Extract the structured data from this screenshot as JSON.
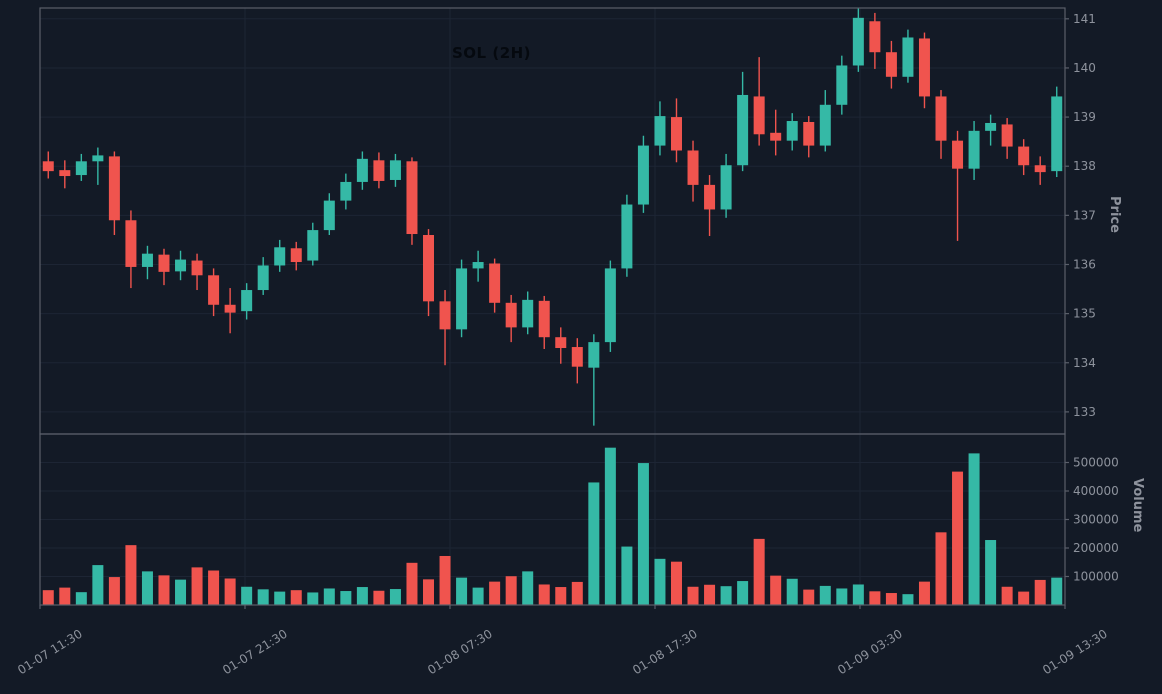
{
  "colors": {
    "background": "#131a26",
    "up": "#35b9a6",
    "down": "#f0544e",
    "grid": "#1d2534",
    "spine": "#5a5f6a",
    "tick_text": "#8e939d",
    "axis_label_text": "#8e939d",
    "title_text": "#05090f"
  },
  "chart_data": {
    "type": "candlestick",
    "title": "SOL (2H)",
    "ylabel": "Price",
    "ylabel2": "Volume",
    "xlabel": "",
    "legend": "none",
    "grid": "on",
    "x_tick_labels": [
      "01-07 11:30",
      "01-07 21:30",
      "01-08 07:30",
      "01-08 17:30",
      "01-09 03:30",
      "01-09 13:30"
    ],
    "price_ticks": [
      133,
      134,
      135,
      136,
      137,
      138,
      139,
      140,
      141
    ],
    "volume_ticks": [
      100000,
      200000,
      300000,
      400000,
      500000
    ],
    "price_ylim": [
      132.55,
      141.22
    ],
    "volume_ylim": [
      0,
      600000
    ],
    "columns": [
      "open",
      "high",
      "low",
      "close",
      "volume"
    ],
    "candles": [
      [
        138.1,
        138.3,
        137.75,
        137.9,
        52000
      ],
      [
        137.92,
        138.12,
        137.55,
        137.8,
        61000
      ],
      [
        137.82,
        138.25,
        137.7,
        138.1,
        45000
      ],
      [
        138.1,
        138.38,
        137.62,
        138.22,
        140000
      ],
      [
        138.2,
        138.3,
        136.6,
        136.9,
        98000
      ],
      [
        136.9,
        137.1,
        135.52,
        135.95,
        210000
      ],
      [
        135.95,
        136.38,
        135.7,
        136.22,
        118000
      ],
      [
        136.2,
        136.32,
        135.58,
        135.85,
        104000
      ],
      [
        135.86,
        136.28,
        135.68,
        136.1,
        89000
      ],
      [
        136.08,
        136.22,
        135.48,
        135.78,
        132000
      ],
      [
        135.78,
        135.92,
        134.95,
        135.18,
        121000
      ],
      [
        135.18,
        135.52,
        134.6,
        135.02,
        93000
      ],
      [
        135.05,
        135.62,
        134.88,
        135.48,
        64000
      ],
      [
        135.48,
        136.15,
        135.38,
        135.98,
        55000
      ],
      [
        135.98,
        136.5,
        135.85,
        136.35,
        47000
      ],
      [
        136.33,
        136.46,
        135.88,
        136.05,
        52000
      ],
      [
        136.08,
        136.85,
        135.98,
        136.7,
        44000
      ],
      [
        136.7,
        137.45,
        136.6,
        137.3,
        58000
      ],
      [
        137.3,
        137.85,
        137.12,
        137.68,
        49000
      ],
      [
        137.68,
        138.3,
        137.52,
        138.15,
        63000
      ],
      [
        138.12,
        138.28,
        137.55,
        137.7,
        50000
      ],
      [
        137.72,
        138.25,
        137.58,
        138.12,
        56000
      ],
      [
        138.1,
        138.18,
        136.4,
        136.62,
        148000
      ],
      [
        136.6,
        136.72,
        134.95,
        135.25,
        90000
      ],
      [
        135.25,
        135.48,
        133.95,
        134.68,
        172000
      ],
      [
        134.68,
        136.1,
        134.52,
        135.92,
        96000
      ],
      [
        135.92,
        136.28,
        135.65,
        136.05,
        61000
      ],
      [
        136.02,
        136.12,
        135.02,
        135.22,
        82000
      ],
      [
        135.22,
        135.38,
        134.42,
        134.72,
        101000
      ],
      [
        134.72,
        135.45,
        134.58,
        135.28,
        118000
      ],
      [
        135.26,
        135.36,
        134.28,
        134.52,
        72000
      ],
      [
        134.52,
        134.72,
        133.98,
        134.3,
        63000
      ],
      [
        134.32,
        134.5,
        133.58,
        133.92,
        81000
      ],
      [
        133.9,
        134.58,
        132.72,
        134.42,
        430000
      ],
      [
        134.42,
        136.08,
        134.22,
        135.92,
        552000
      ],
      [
        135.92,
        137.42,
        135.75,
        137.22,
        205000
      ],
      [
        137.22,
        138.62,
        137.05,
        138.42,
        498000
      ],
      [
        138.42,
        139.32,
        138.22,
        139.02,
        162000
      ],
      [
        139.0,
        139.38,
        138.08,
        138.32,
        152000
      ],
      [
        138.32,
        138.52,
        137.28,
        137.62,
        64000
      ],
      [
        137.62,
        137.82,
        136.58,
        137.12,
        71000
      ],
      [
        137.12,
        138.25,
        136.95,
        138.02,
        66000
      ],
      [
        138.02,
        139.92,
        137.9,
        139.45,
        84000
      ],
      [
        139.42,
        140.22,
        138.42,
        138.65,
        232000
      ],
      [
        138.68,
        139.15,
        138.22,
        138.52,
        103000
      ],
      [
        138.52,
        139.08,
        138.32,
        138.92,
        92000
      ],
      [
        138.9,
        139.02,
        138.18,
        138.42,
        54000
      ],
      [
        138.42,
        139.55,
        138.3,
        139.25,
        67000
      ],
      [
        139.25,
        140.25,
        139.05,
        140.05,
        58000
      ],
      [
        140.05,
        141.22,
        139.92,
        141.02,
        72000
      ],
      [
        140.95,
        141.12,
        139.98,
        140.32,
        48000
      ],
      [
        140.32,
        140.55,
        139.58,
        139.82,
        42000
      ],
      [
        139.82,
        140.78,
        139.7,
        140.62,
        38000
      ],
      [
        140.6,
        140.72,
        139.18,
        139.42,
        82000
      ],
      [
        139.42,
        139.55,
        138.15,
        138.52,
        255000
      ],
      [
        138.52,
        138.72,
        136.48,
        137.95,
        468000
      ],
      [
        137.95,
        138.92,
        137.72,
        138.72,
        532000
      ],
      [
        138.72,
        139.05,
        138.42,
        138.88,
        228000
      ],
      [
        138.85,
        138.98,
        138.15,
        138.4,
        64000
      ],
      [
        138.4,
        138.55,
        137.82,
        138.02,
        47000
      ],
      [
        138.02,
        138.2,
        137.62,
        137.88,
        88000
      ],
      [
        137.9,
        139.62,
        137.78,
        139.42,
        96000
      ]
    ]
  }
}
